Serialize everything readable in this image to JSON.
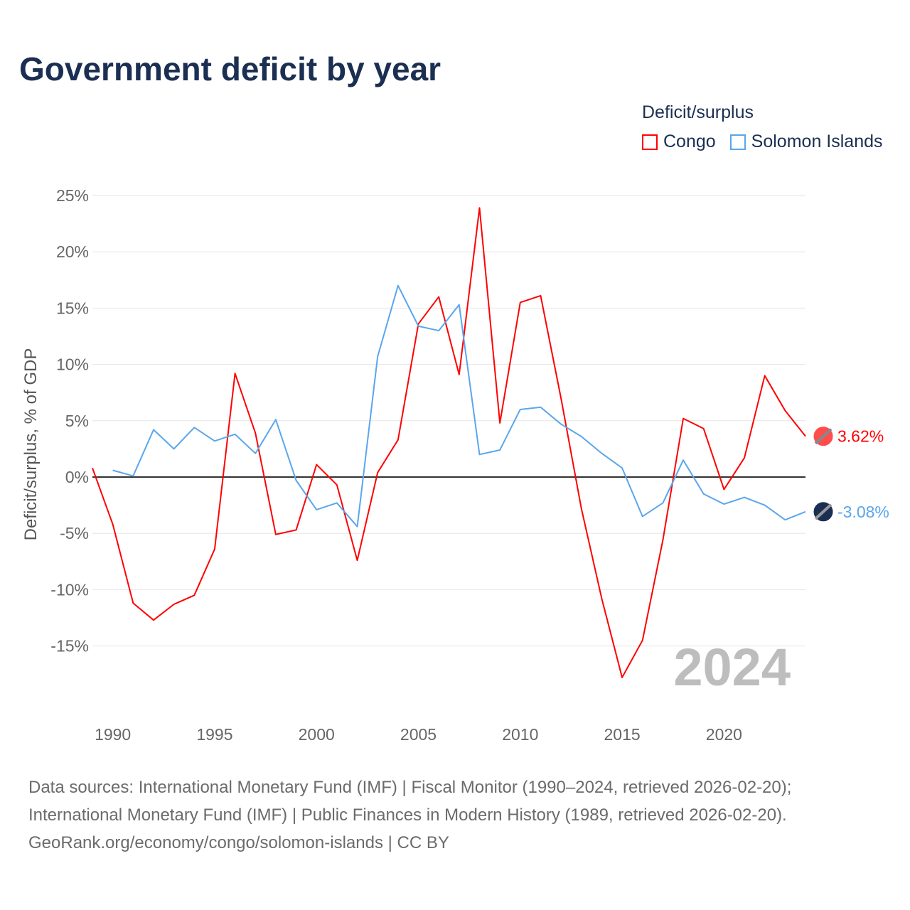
{
  "title": "Government deficit by year",
  "legend": {
    "title": "Deficit/surplus",
    "items": [
      {
        "name": "Congo",
        "color": "#ff0000"
      },
      {
        "name": "Solomon Islands",
        "color": "#5aa6ec"
      }
    ]
  },
  "watermark_year": "2024",
  "footer": [
    "Data sources: International Monetary Fund (IMF) | Fiscal Monitor (1990–2024, retrieved 2026-02-20);",
    "International Monetary Fund (IMF) | Public Finances in Modern History (1989, retrieved 2026-02-20).",
    "GeoRank.org/economy/congo/solomon-islands | CC BY"
  ],
  "chart_data": {
    "type": "line",
    "title": "Government deficit by year",
    "xlabel": "",
    "ylabel": "Deficit/surplus, % of GDP",
    "xlim": [
      1989,
      2024
    ],
    "ylim": [
      -18,
      25
    ],
    "x_ticks": [
      1990,
      1995,
      2000,
      2005,
      2010,
      2015,
      2020
    ],
    "x_tick_labels": [
      "1990",
      "1995",
      "2000",
      "2005",
      "2010",
      "2015",
      "2020"
    ],
    "y_ticks": [
      25,
      20,
      15,
      10,
      5,
      0,
      -5,
      -10,
      -15
    ],
    "y_tick_labels": [
      "25%",
      "20%",
      "15%",
      "10%",
      "5%",
      "0%",
      "-5%",
      "-10%",
      "-15%"
    ],
    "grid": true,
    "legend_position": "top-right",
    "series": [
      {
        "name": "Congo",
        "color": "#ff0000",
        "end_label": "3.62%",
        "x": [
          1989,
          1990,
          1991,
          1992,
          1993,
          1994,
          1995,
          1996,
          1997,
          1998,
          1999,
          2000,
          2001,
          2002,
          2003,
          2004,
          2005,
          2006,
          2007,
          2008,
          2009,
          2010,
          2011,
          2012,
          2013,
          2014,
          2015,
          2016,
          2017,
          2018,
          2019,
          2020,
          2021,
          2022,
          2023,
          2024
        ],
        "values": [
          0.8,
          -4.2,
          -11.2,
          -12.7,
          -11.3,
          -10.5,
          -6.4,
          9.2,
          3.9,
          -5.1,
          -4.7,
          1.1,
          -0.7,
          -7.4,
          0.4,
          3.3,
          13.6,
          16.0,
          9.1,
          23.9,
          4.8,
          15.5,
          16.1,
          7.0,
          -2.8,
          -10.8,
          -17.8,
          -14.5,
          -5.6,
          5.2,
          4.3,
          -1.1,
          1.7,
          9.0,
          5.9,
          3.62
        ]
      },
      {
        "name": "Solomon Islands",
        "color": "#5aa6ec",
        "end_label": "-3.08%",
        "x": [
          1990,
          1991,
          1992,
          1993,
          1994,
          1995,
          1996,
          1997,
          1998,
          1999,
          2000,
          2001,
          2002,
          2003,
          2004,
          2005,
          2006,
          2007,
          2008,
          2009,
          2010,
          2011,
          2012,
          2013,
          2014,
          2015,
          2016,
          2017,
          2018,
          2019,
          2020,
          2021,
          2022,
          2023,
          2024
        ],
        "values": [
          0.6,
          0.1,
          4.2,
          2.5,
          4.4,
          3.2,
          3.8,
          2.1,
          5.1,
          -0.3,
          -2.9,
          -2.3,
          -4.4,
          10.7,
          17.0,
          13.4,
          13.0,
          15.3,
          2.0,
          2.4,
          6.0,
          6.2,
          4.7,
          3.6,
          2.1,
          0.8,
          -3.5,
          -2.3,
          1.5,
          -1.5,
          -2.4,
          -1.8,
          -2.5,
          -3.8,
          -3.08
        ]
      }
    ]
  }
}
